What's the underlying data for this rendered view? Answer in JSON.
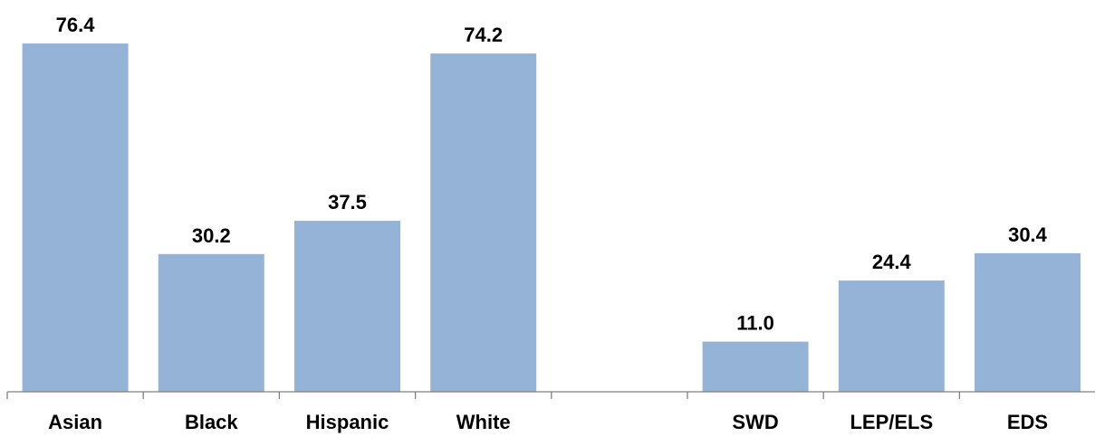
{
  "chart_data": {
    "type": "bar",
    "categories": [
      "Asian",
      "Black",
      "Hispanic",
      "White",
      "",
      "SWD",
      "LEP/ELS",
      "EDS"
    ],
    "values": [
      76.4,
      30.2,
      37.5,
      74.2,
      null,
      11.0,
      24.4,
      30.4
    ],
    "value_labels": [
      "76.4",
      "30.2",
      "37.5",
      "74.2",
      "",
      "11.0",
      "24.4",
      "30.4"
    ],
    "title": "",
    "xlabel": "",
    "ylabel": "",
    "ylim": [
      0,
      78
    ],
    "grid": false,
    "legend": "none",
    "bar_color": "#95B3D7"
  }
}
